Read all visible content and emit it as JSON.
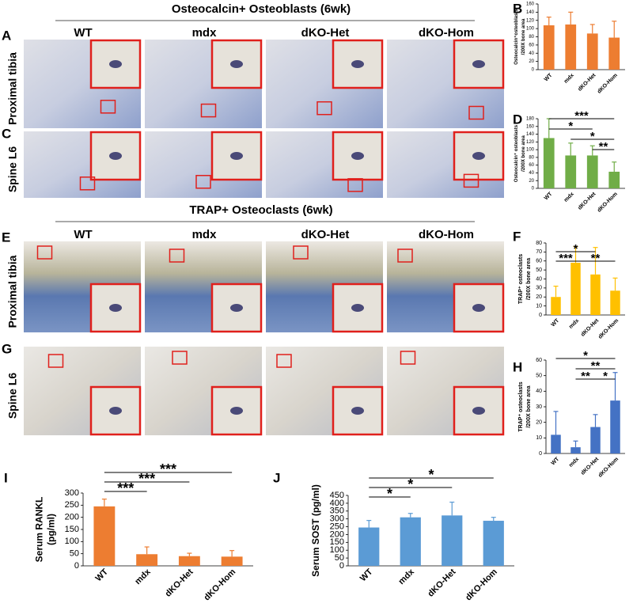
{
  "figure": {
    "sections": [
      {
        "title": "Osteocalcin+ Osteoblasts (6wk)",
        "columns": [
          "WT",
          "mdx",
          "dKO-Het",
          "dKO-Hom"
        ],
        "rows": [
          {
            "panel": "A",
            "label": "Proximal tibia"
          },
          {
            "panel": "C",
            "label": "Spine L6"
          }
        ]
      },
      {
        "title": "TRAP+ Osteoclasts (6wk)",
        "columns": [
          "WT",
          "mdx",
          "dKO-Het",
          "dKO-Hom"
        ],
        "rows": [
          {
            "panel": "E",
            "label": "Proximal tibia"
          },
          {
            "panel": "G",
            "label": "Spine L6"
          }
        ]
      }
    ]
  },
  "chart_data": [
    {
      "type": "bar",
      "panel": "B",
      "ylabel": [
        "Osteocalcin⁺osteoblasts",
        "/200X bone area"
      ],
      "categories": [
        "WT",
        "mdx",
        "dKO-Het",
        "dKO-Hom"
      ],
      "values": [
        108,
        110,
        88,
        78
      ],
      "errors": [
        20,
        30,
        22,
        40
      ],
      "color": "#ed7d31",
      "ylim": [
        0,
        160
      ],
      "yticks": [
        0,
        20,
        40,
        60,
        80,
        100,
        120,
        140,
        160
      ],
      "comparisons": []
    },
    {
      "type": "bar",
      "panel": "D",
      "ylabel": [
        "Osteocalcin⁺ osteoblasts",
        "/200X bone area"
      ],
      "categories": [
        "WT",
        "mdx",
        "dKO-Het",
        "dKO-Hom"
      ],
      "values": [
        130,
        85,
        85,
        43
      ],
      "errors": [
        50,
        32,
        25,
        25
      ],
      "color": "#70ad47",
      "ylim": [
        0,
        180
      ],
      "yticks": [
        0,
        20,
        40,
        60,
        80,
        100,
        120,
        140,
        160,
        180
      ],
      "comparisons": [
        {
          "label": "***",
          "between": [
            "WT",
            "dKO-Hom"
          ]
        },
        {
          "label": "*",
          "between": [
            "WT",
            "dKO-Het"
          ]
        },
        {
          "label": "*",
          "between": [
            "mdx",
            "dKO-Hom"
          ]
        },
        {
          "label": "**",
          "between": [
            "dKO-Het",
            "dKO-Hom"
          ]
        }
      ]
    },
    {
      "type": "bar",
      "panel": "F",
      "ylabel": [
        "TRAP⁺ osteoclasts",
        "/200X bone area"
      ],
      "categories": [
        "WT",
        "mdx",
        "dKO-Het",
        "dKO-Hom"
      ],
      "values": [
        20,
        58,
        45,
        27
      ],
      "errors": [
        12,
        18,
        30,
        14
      ],
      "color": "#ffc000",
      "ylim": [
        0,
        80
      ],
      "yticks": [
        0,
        10,
        20,
        30,
        40,
        50,
        60,
        70,
        80
      ],
      "comparisons": [
        {
          "label": "*",
          "between": [
            "WT",
            "dKO-Het"
          ]
        },
        {
          "label": "***",
          "between": [
            "WT",
            "mdx"
          ]
        },
        {
          "label": "**",
          "between": [
            "mdx",
            "dKO-Hom"
          ]
        }
      ]
    },
    {
      "type": "bar",
      "panel": "H",
      "ylabel": [
        "TRAP⁺ osteoclasts",
        "/200X bone area"
      ],
      "categories": [
        "WT",
        "mdx",
        "dKO-Het",
        "dKO-Hom"
      ],
      "values": [
        12,
        4,
        17,
        34
      ],
      "errors": [
        15,
        4,
        8,
        18
      ],
      "color": "#4472c4",
      "ylim": [
        0,
        60
      ],
      "yticks": [
        0,
        10,
        20,
        30,
        40,
        50,
        60
      ],
      "comparisons": [
        {
          "label": "*",
          "between": [
            "WT",
            "dKO-Hom"
          ]
        },
        {
          "label": "**",
          "between": [
            "mdx",
            "dKO-Hom"
          ]
        },
        {
          "label": "*",
          "between": [
            "dKO-Het",
            "dKO-Hom"
          ]
        },
        {
          "label": "**",
          "between": [
            "mdx",
            "dKO-Het"
          ]
        }
      ]
    },
    {
      "type": "bar",
      "panel": "I",
      "ylabel": [
        "Serum RANKL",
        "(pg/ml)"
      ],
      "categories": [
        "WT",
        "mdx",
        "dKO-Het",
        "dKO-Hom"
      ],
      "values": [
        245,
        48,
        40,
        38
      ],
      "errors": [
        30,
        30,
        12,
        25
      ],
      "color": "#ed7d31",
      "ylim": [
        0,
        300
      ],
      "yticks": [
        0,
        50,
        100,
        150,
        200,
        250,
        300
      ],
      "comparisons": [
        {
          "label": "***",
          "between": [
            "WT",
            "dKO-Hom"
          ]
        },
        {
          "label": "***",
          "between": [
            "WT",
            "dKO-Het"
          ]
        },
        {
          "label": "***",
          "between": [
            "WT",
            "mdx"
          ]
        }
      ]
    },
    {
      "type": "bar",
      "panel": "J",
      "ylabel": [
        "Serum SOST (pg/ml)"
      ],
      "categories": [
        "WT",
        "mdx",
        "dKO-Het",
        "dKO-Hom"
      ],
      "values": [
        245,
        310,
        322,
        288
      ],
      "errors": [
        45,
        25,
        85,
        22
      ],
      "color": "#5b9bd5",
      "ylim": [
        0,
        450
      ],
      "yticks": [
        0,
        50,
        100,
        150,
        200,
        250,
        300,
        350,
        400,
        450
      ],
      "comparisons": [
        {
          "label": "*",
          "between": [
            "WT",
            "dKO-Hom"
          ]
        },
        {
          "label": "*",
          "between": [
            "WT",
            "dKO-Het"
          ]
        },
        {
          "label": "*",
          "between": [
            "WT",
            "mdx"
          ]
        }
      ]
    }
  ]
}
